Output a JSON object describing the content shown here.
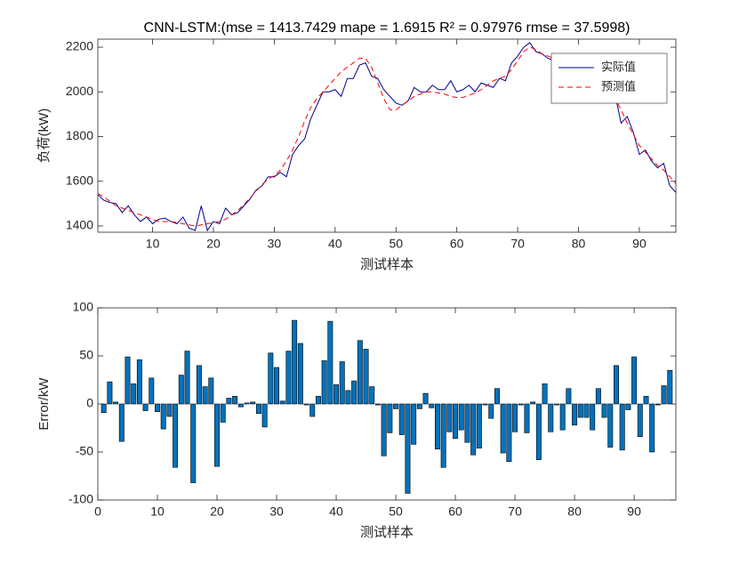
{
  "chart_data": [
    {
      "type": "line",
      "title": "CNN-LSTM:(mse = 1413.7429 mape = 1.6915  R² = 0.97976 rmse = 37.5998)",
      "xlabel": "测试样本",
      "ylabel": "负荷(kW)",
      "x": [
        1,
        2,
        3,
        4,
        5,
        6,
        7,
        8,
        9,
        10,
        11,
        12,
        13,
        14,
        15,
        16,
        17,
        18,
        19,
        20,
        21,
        22,
        23,
        24,
        25,
        26,
        27,
        28,
        29,
        30,
        31,
        32,
        33,
        34,
        35,
        36,
        37,
        38,
        39,
        40,
        41,
        42,
        43,
        44,
        45,
        46,
        47,
        48,
        49,
        50,
        51,
        52,
        53,
        54,
        55,
        56,
        57,
        58,
        59,
        60,
        61,
        62,
        63,
        64,
        65,
        66,
        67,
        68,
        69,
        70,
        71,
        72,
        73,
        74,
        75,
        76,
        77,
        78,
        79,
        80,
        81,
        82,
        83,
        84,
        85,
        86,
        87,
        88,
        89,
        90,
        91,
        92,
        93,
        94,
        95,
        96
      ],
      "series": [
        {
          "name": "实际值",
          "color": "#00008b",
          "dash": false,
          "values": [
            1540,
            1515,
            1505,
            1500,
            1460,
            1490,
            1450,
            1420,
            1440,
            1410,
            1430,
            1435,
            1420,
            1410,
            1440,
            1390,
            1380,
            1490,
            1380,
            1420,
            1410,
            1480,
            1450,
            1460,
            1490,
            1520,
            1560,
            1580,
            1620,
            1620,
            1640,
            1620,
            1720,
            1760,
            1790,
            1880,
            1940,
            2000,
            2000,
            2010,
            1980,
            2060,
            2060,
            2120,
            2130,
            2070,
            2060,
            2010,
            1980,
            1950,
            1940,
            1960,
            2020,
            2000,
            2000,
            2030,
            2010,
            2010,
            2050,
            2000,
            2010,
            2030,
            2000,
            2040,
            2030,
            2020,
            2060,
            2050,
            2130,
            2160,
            2200,
            2220,
            2180,
            2170,
            2150,
            2140,
            2090,
            2130,
            2130,
            2110,
            2090,
            2060,
            2040,
            2050,
            2020,
            1990,
            1860,
            1890,
            1820,
            1720,
            1740,
            1690,
            1660,
            1680,
            1580,
            1550
          ]
        },
        {
          "name": "预测值",
          "color": "#ff0000",
          "dash": true,
          "values": [
            1545,
            1530,
            1510,
            1490,
            1480,
            1470,
            1460,
            1450,
            1440,
            1430,
            1420,
            1420,
            1420,
            1415,
            1410,
            1405,
            1400,
            1405,
            1410,
            1415,
            1420,
            1430,
            1450,
            1470,
            1495,
            1525,
            1555,
            1585,
            1610,
            1625,
            1650,
            1690,
            1740,
            1800,
            1870,
            1930,
            1970,
            2000,
            2030,
            2060,
            2090,
            2110,
            2130,
            2150,
            2150,
            2110,
            2040,
            1970,
            1920,
            1920,
            1940,
            1960,
            1980,
            1990,
            2000,
            2000,
            1995,
            1990,
            1980,
            1975,
            1975,
            1985,
            1995,
            2010,
            2030,
            2050,
            2060,
            2070,
            2100,
            2140,
            2180,
            2200,
            2190,
            2170,
            2160,
            2150,
            2140,
            2130,
            2120,
            2110,
            2100,
            2080,
            2060,
            2040,
            2010,
            1970,
            1920,
            1860,
            1810,
            1760,
            1730,
            1700,
            1670,
            1650,
            1620,
            1590
          ]
        }
      ],
      "xlim": [
        1,
        96
      ],
      "xticks": [
        10,
        20,
        30,
        40,
        50,
        60,
        70,
        80,
        90
      ],
      "ylim": [
        1372,
        2236
      ],
      "yticks": [
        1400,
        1600,
        1800,
        2000,
        2200
      ],
      "legend": "northeast"
    },
    {
      "type": "bar",
      "xlabel": "测试样本",
      "ylabel": "Error/kW",
      "x": [
        1,
        2,
        3,
        4,
        5,
        6,
        7,
        8,
        9,
        10,
        11,
        12,
        13,
        14,
        15,
        16,
        17,
        18,
        19,
        20,
        21,
        22,
        23,
        24,
        25,
        26,
        27,
        28,
        29,
        30,
        31,
        32,
        33,
        34,
        35,
        36,
        37,
        38,
        39,
        40,
        41,
        42,
        43,
        44,
        45,
        46,
        47,
        48,
        49,
        50,
        51,
        52,
        53,
        54,
        55,
        56,
        57,
        58,
        59,
        60,
        61,
        62,
        63,
        64,
        65,
        66,
        67,
        68,
        69,
        70,
        71,
        72,
        73,
        74,
        75,
        76,
        77,
        78,
        79,
        80,
        81,
        82,
        83,
        84,
        85,
        86,
        87,
        88,
        89,
        90,
        91,
        92,
        93,
        94,
        95,
        96
      ],
      "values": [
        -9,
        23,
        2,
        -39,
        49,
        21,
        46,
        -7,
        27,
        -8,
        -26,
        -13,
        -66,
        30,
        55,
        -82,
        40,
        18,
        27,
        -65,
        -19,
        6,
        8,
        -3,
        1,
        2,
        -10,
        -24,
        53,
        38,
        3,
        55,
        87,
        63,
        -1,
        -13,
        8,
        45,
        86,
        20,
        44,
        14,
        24,
        66,
        57,
        18,
        -1,
        -54,
        -30,
        -5,
        -32,
        -93,
        -42,
        -5,
        11,
        -4,
        -47,
        -66,
        -29,
        -36,
        -27,
        -40,
        -53,
        -46,
        -1,
        -15,
        16,
        -51,
        -60,
        -29,
        -1,
        -30,
        2,
        -58,
        21,
        -29,
        -1,
        -27,
        16,
        -22,
        -14,
        -14,
        -27,
        16,
        -14,
        -45,
        40,
        -48,
        -6,
        49,
        -34,
        8,
        -50,
        -1,
        19,
        35
      ],
      "color": "#0072bd",
      "xlim": [
        0,
        97
      ],
      "xticks": [
        0,
        10,
        20,
        30,
        40,
        50,
        60,
        70,
        80,
        90
      ],
      "ylim": [
        -100,
        100
      ],
      "yticks": [
        -100,
        -50,
        0,
        50,
        100
      ]
    }
  ]
}
